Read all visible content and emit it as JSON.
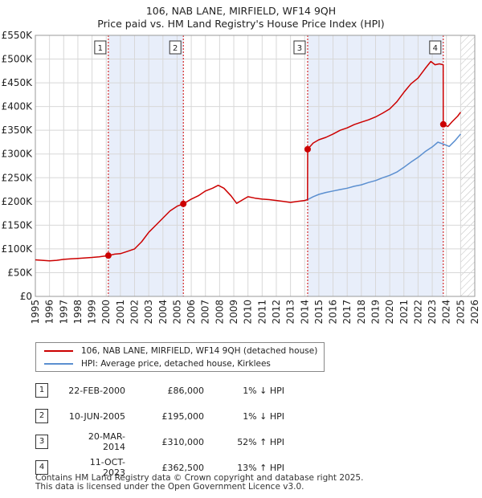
{
  "chart_data": {
    "type": "line",
    "title": "106, NAB LANE, MIRFIELD, WF14 9QH",
    "subtitle": "Price paid vs. HM Land Registry's House Price Index (HPI)",
    "xlim": [
      1995,
      2026
    ],
    "ylim": [
      0,
      550000
    ],
    "x_ticks": [
      1995,
      1996,
      1997,
      1998,
      1999,
      2000,
      2001,
      2002,
      2003,
      2004,
      2005,
      2006,
      2007,
      2008,
      2009,
      2010,
      2011,
      2012,
      2013,
      2014,
      2015,
      2016,
      2017,
      2018,
      2019,
      2020,
      2021,
      2022,
      2023,
      2024,
      2025,
      2026
    ],
    "x_tick_labels": [
      "1995",
      "1996",
      "1997",
      "1998",
      "1999",
      "2000",
      "2001",
      "2002",
      "2003",
      "2004",
      "2005",
      "2006",
      "2007",
      "2008",
      "2009",
      "2010",
      "2011",
      "2012",
      "2013",
      "2014",
      "2015",
      "2016",
      "2017",
      "2018",
      "2019",
      "2020",
      "2021",
      "2022",
      "2023",
      "2024",
      "2025",
      "2026"
    ],
    "y_ticks": [
      0,
      50000,
      100000,
      150000,
      200000,
      250000,
      300000,
      350000,
      400000,
      450000,
      500000,
      550000
    ],
    "y_tick_labels": [
      "£0",
      "£50K",
      "£100K",
      "£150K",
      "£200K",
      "£250K",
      "£300K",
      "£350K",
      "£400K",
      "£450K",
      "£500K",
      "£550K"
    ],
    "grid": true,
    "series": [
      {
        "name": "106, NAB LANE, MIRFIELD, WF14 9QH (detached house)",
        "color": "#cc0000",
        "points": [
          [
            1995,
            77000
          ],
          [
            1995.5,
            76000
          ],
          [
            1996,
            75000
          ],
          [
            1996.5,
            76000
          ],
          [
            1997,
            78000
          ],
          [
            1997.5,
            79000
          ],
          [
            1998,
            80000
          ],
          [
            1998.5,
            81000
          ],
          [
            1999,
            82000
          ],
          [
            1999.5,
            83500
          ],
          [
            2000.15,
            86000
          ],
          [
            2000.6,
            89000
          ],
          [
            2001,
            90000
          ],
          [
            2001.5,
            95000
          ],
          [
            2002,
            100000
          ],
          [
            2002.5,
            115000
          ],
          [
            2003,
            135000
          ],
          [
            2003.5,
            150000
          ],
          [
            2004,
            165000
          ],
          [
            2004.5,
            180000
          ],
          [
            2005.0,
            190000
          ],
          [
            2005.44,
            195000
          ],
          [
            2006,
            205000
          ],
          [
            2006.5,
            212000
          ],
          [
            2007,
            222000
          ],
          [
            2007.5,
            228000
          ],
          [
            2007.9,
            234000
          ],
          [
            2008.3,
            228000
          ],
          [
            2008.8,
            212000
          ],
          [
            2009.2,
            196000
          ],
          [
            2009.6,
            203000
          ],
          [
            2010,
            210000
          ],
          [
            2010.5,
            207000
          ],
          [
            2011,
            205000
          ],
          [
            2011.5,
            204000
          ],
          [
            2012,
            202000
          ],
          [
            2012.5,
            200000
          ],
          [
            2013,
            198000
          ],
          [
            2013.5,
            200000
          ],
          [
            2014.0,
            202000
          ],
          [
            2014.2,
            204000
          ],
          [
            2014.21,
            310000
          ],
          [
            2014.6,
            323000
          ],
          [
            2015,
            330000
          ],
          [
            2015.5,
            335000
          ],
          [
            2016,
            342000
          ],
          [
            2016.5,
            350000
          ],
          [
            2017,
            355000
          ],
          [
            2017.5,
            362000
          ],
          [
            2018,
            367000
          ],
          [
            2018.5,
            372000
          ],
          [
            2019,
            378000
          ],
          [
            2019.5,
            386000
          ],
          [
            2020,
            395000
          ],
          [
            2020.5,
            410000
          ],
          [
            2021,
            430000
          ],
          [
            2021.5,
            448000
          ],
          [
            2022,
            460000
          ],
          [
            2022.5,
            480000
          ],
          [
            2022.9,
            495000
          ],
          [
            2023.2,
            488000
          ],
          [
            2023.5,
            490000
          ],
          [
            2023.77,
            488000
          ],
          [
            2023.78,
            362500
          ],
          [
            2024.1,
            358000
          ],
          [
            2024.4,
            368000
          ],
          [
            2024.8,
            380000
          ],
          [
            2025.0,
            388000
          ]
        ]
      },
      {
        "name": "HPI: Average price, detached house, Kirklees",
        "color": "#5b8fd0",
        "points": [
          [
            2014.21,
            204000
          ],
          [
            2014.6,
            210000
          ],
          [
            2015,
            215000
          ],
          [
            2015.5,
            219000
          ],
          [
            2016,
            222000
          ],
          [
            2016.5,
            225000
          ],
          [
            2017,
            228000
          ],
          [
            2017.5,
            232000
          ],
          [
            2018,
            235000
          ],
          [
            2018.5,
            240000
          ],
          [
            2019,
            244000
          ],
          [
            2019.5,
            250000
          ],
          [
            2020,
            255000
          ],
          [
            2020.5,
            262000
          ],
          [
            2021,
            272000
          ],
          [
            2021.5,
            283000
          ],
          [
            2022,
            293000
          ],
          [
            2022.5,
            305000
          ],
          [
            2023,
            315000
          ],
          [
            2023.4,
            325000
          ],
          [
            2023.78,
            321000
          ],
          [
            2024.2,
            316000
          ],
          [
            2024.6,
            328000
          ],
          [
            2025.0,
            342000
          ]
        ]
      }
    ],
    "sales": [
      {
        "id": "1",
        "x": 2000.15,
        "y": 86000
      },
      {
        "id": "2",
        "x": 2005.44,
        "y": 195000
      },
      {
        "id": "3",
        "x": 2014.21,
        "y": 310000
      },
      {
        "id": "4",
        "x": 2023.78,
        "y": 362500
      }
    ],
    "sale_bands": [
      [
        2000.15,
        2005.44
      ],
      [
        2014.21,
        2023.78
      ]
    ],
    "future_hatch_from": 2025.0
  },
  "legend": {
    "property_label": "106, NAB LANE, MIRFIELD, WF14 9QH (detached house)",
    "hpi_label": "HPI: Average price, detached house, Kirklees"
  },
  "table": [
    {
      "id": "1",
      "date": "22-FEB-2000",
      "price": "£86,000",
      "hpi": "1% ↓ HPI"
    },
    {
      "id": "2",
      "date": "10-JUN-2005",
      "price": "£195,000",
      "hpi": "1% ↓ HPI"
    },
    {
      "id": "3",
      "date": "20-MAR-2014",
      "price": "£310,000",
      "hpi": "52% ↑ HPI"
    },
    {
      "id": "4",
      "date": "11-OCT-2023",
      "price": "£362,500",
      "hpi": "13% ↑ HPI"
    }
  ],
  "footer": {
    "line1": "Contains HM Land Registry data © Crown copyright and database right 2025.",
    "line2": "This data is licensed under the Open Government Licence v3.0."
  },
  "colors": {
    "property": "#cc0000",
    "hpi": "#5b8fd0",
    "band": "#e8eefa",
    "grid": "#d8d8d8"
  }
}
